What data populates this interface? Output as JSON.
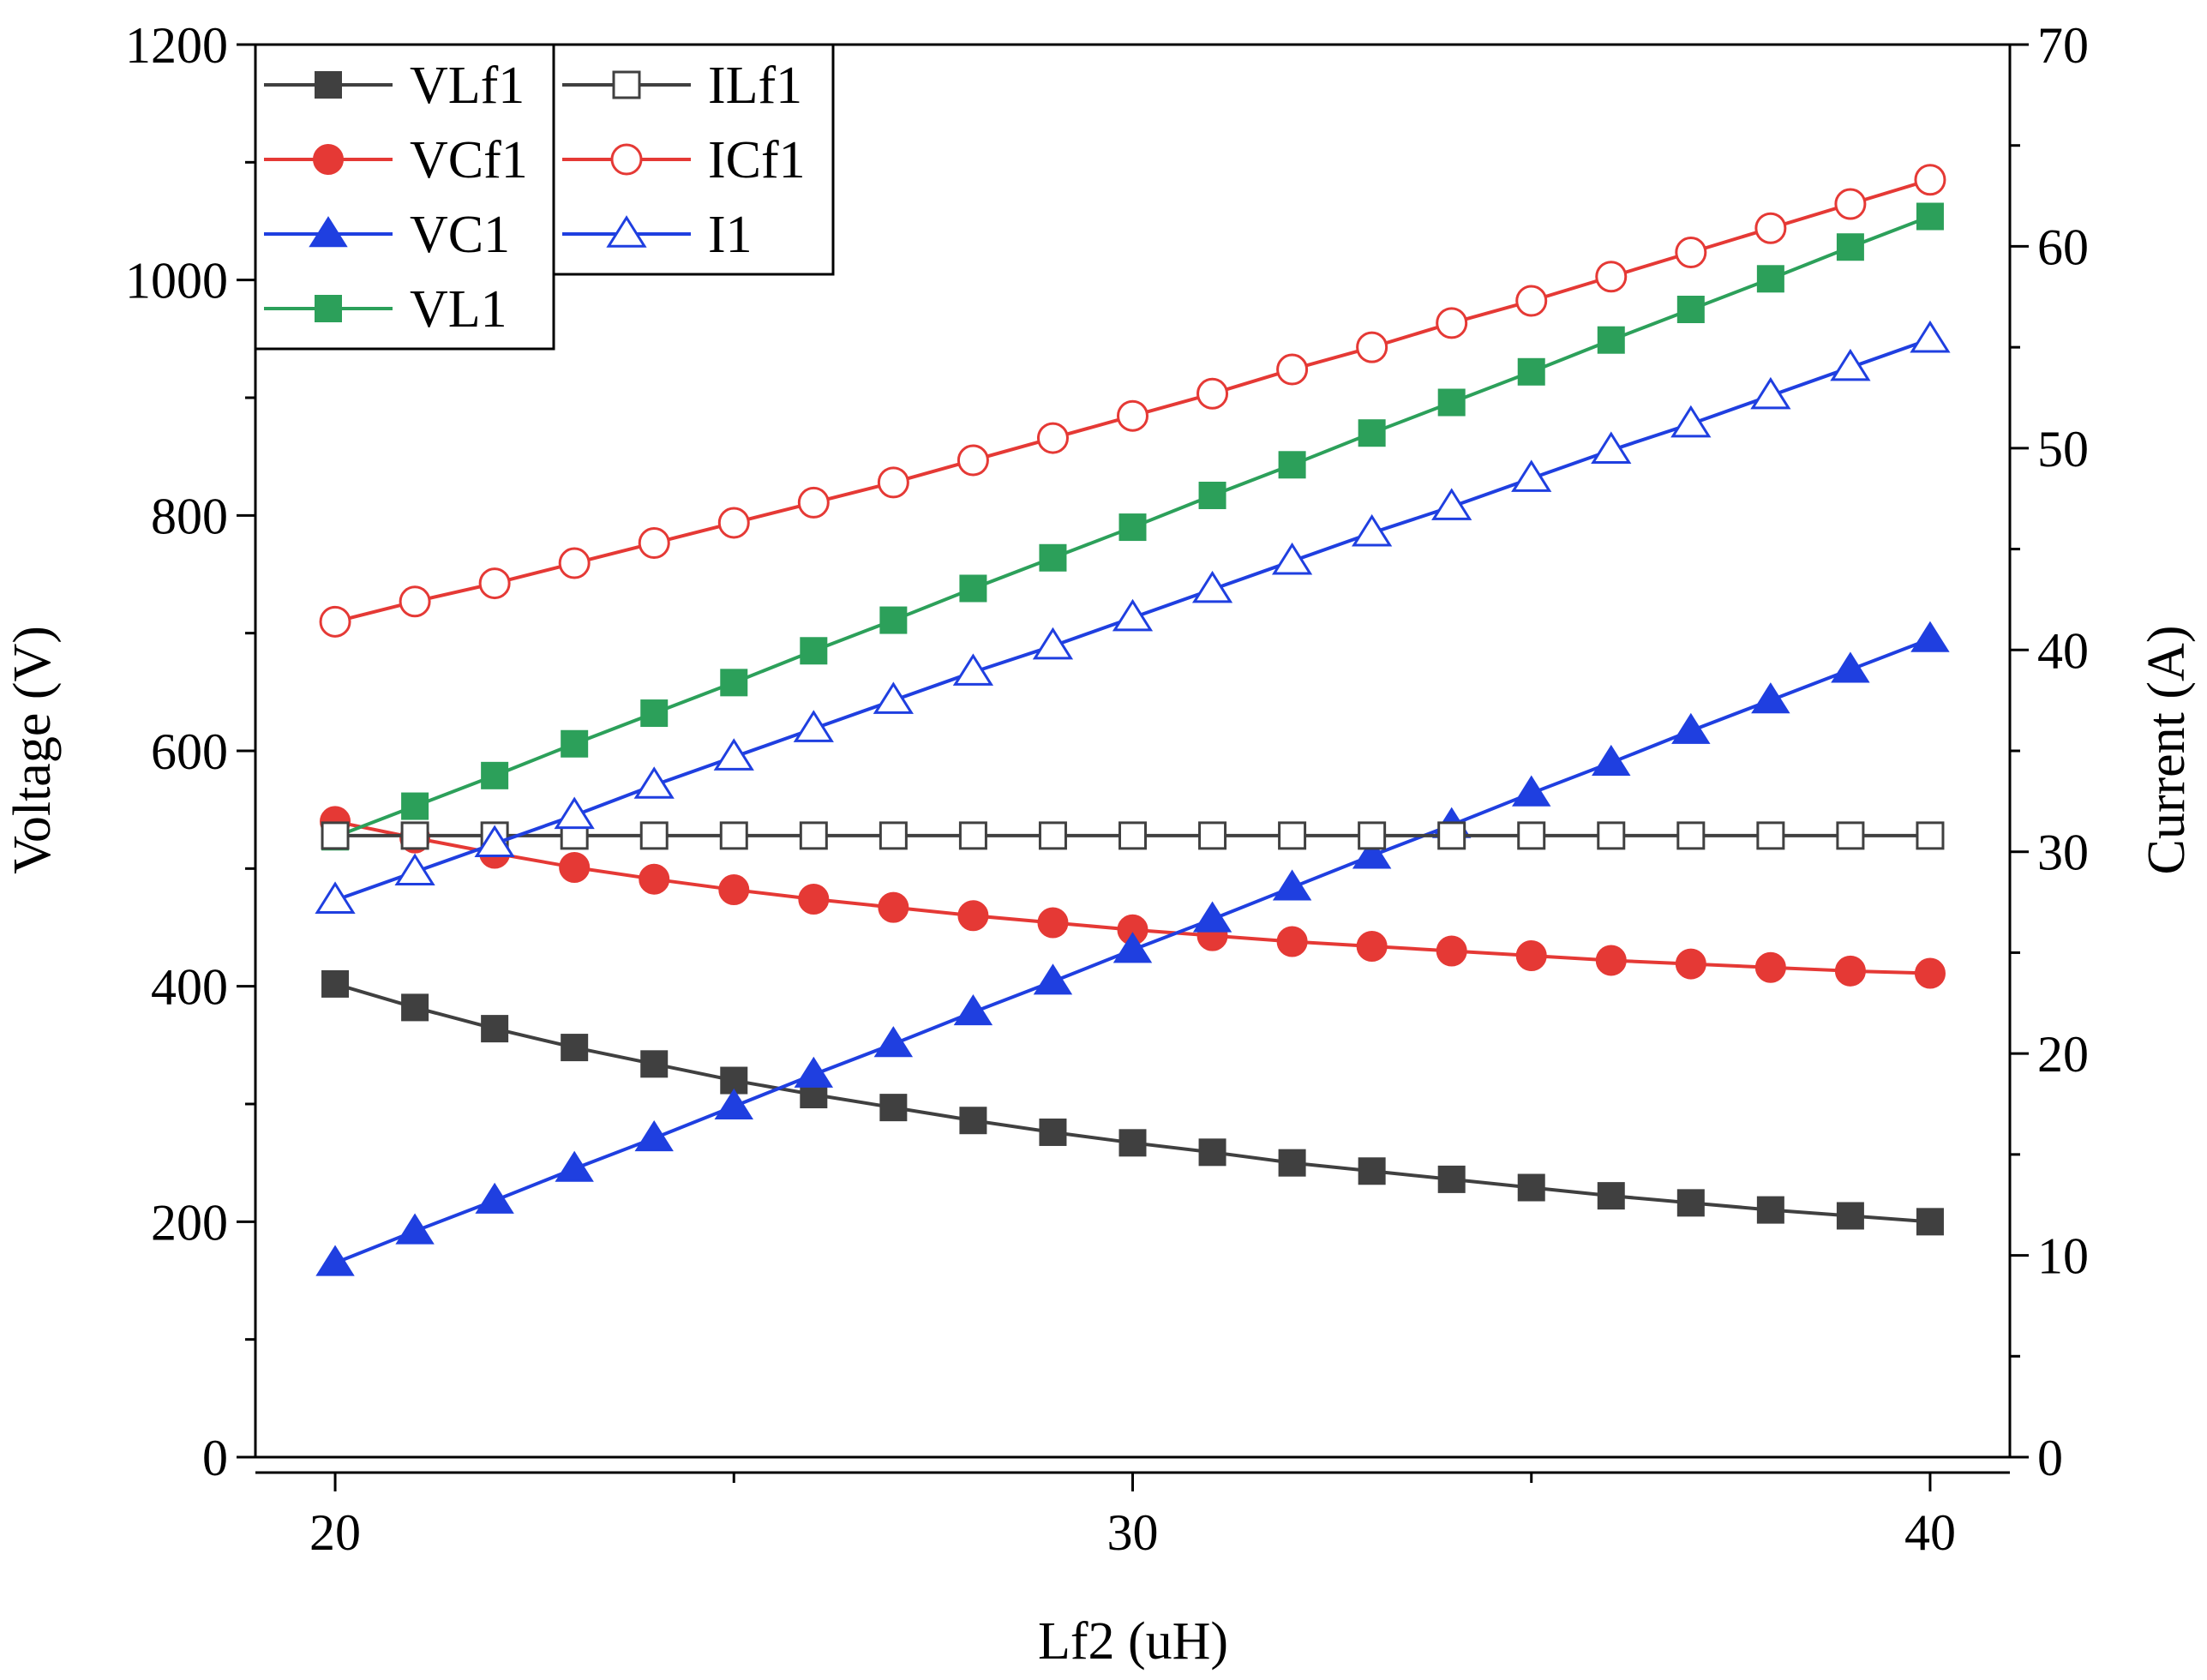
{
  "chart_data": {
    "type": "line",
    "xlabel": "Lf2 (uH)",
    "ylabel": "Voltage (V)",
    "y2label": "Current (A)",
    "xlim": [
      19,
      41
    ],
    "ylim": [
      0,
      1200
    ],
    "y2lim": [
      0,
      70
    ],
    "xticks": [
      20,
      30,
      40
    ],
    "yticks": [
      0,
      200,
      400,
      600,
      800,
      1000,
      1200
    ],
    "y2ticks": [
      0,
      10,
      20,
      30,
      40,
      50,
      60,
      70
    ],
    "x": [
      20,
      21,
      22,
      23,
      24,
      25,
      26,
      27,
      28,
      29,
      30,
      31,
      32,
      33,
      34,
      35,
      36,
      37,
      38,
      39,
      40
    ],
    "legend_position": "top-left",
    "series": [
      {
        "name": "VLf1",
        "axis": "left",
        "color": "#404040",
        "marker": "square",
        "filled": true,
        "values": [
          402,
          382,
          364,
          348,
          334,
          320,
          308,
          297,
          286,
          276,
          267,
          259,
          250,
          243,
          236,
          229,
          222,
          216,
          210,
          205,
          200
        ]
      },
      {
        "name": "VCf1",
        "axis": "left",
        "color": "#e53935",
        "marker": "circle",
        "filled": true,
        "values": [
          540,
          526,
          513,
          501,
          491,
          482,
          474,
          467,
          460,
          454,
          448,
          443,
          438,
          434,
          430,
          426,
          422,
          419,
          416,
          413,
          411
        ]
      },
      {
        "name": "VC1",
        "axis": "left",
        "color": "#1f3fe0",
        "marker": "triangle",
        "filled": true,
        "values": [
          165,
          192,
          218,
          245,
          271,
          298,
          325,
          351,
          378,
          404,
          431,
          457,
          484,
          511,
          537,
          564,
          590,
          617,
          643,
          669,
          695
        ]
      },
      {
        "name": "VL1",
        "axis": "left",
        "color": "#2ca05a",
        "marker": "square",
        "filled": true,
        "values": [
          527,
          553,
          579,
          606,
          632,
          658,
          685,
          711,
          738,
          764,
          790,
          817,
          843,
          870,
          896,
          922,
          949,
          975,
          1001,
          1028,
          1054
        ]
      },
      {
        "name": "ILf1",
        "axis": "right",
        "color": "#404040",
        "marker": "square",
        "filled": false,
        "values": [
          30.8,
          30.8,
          30.8,
          30.8,
          30.8,
          30.8,
          30.8,
          30.8,
          30.8,
          30.8,
          30.8,
          30.8,
          30.8,
          30.8,
          30.8,
          30.8,
          30.8,
          30.8,
          30.8,
          30.8,
          30.8
        ]
      },
      {
        "name": "ICf1",
        "axis": "right",
        "color": "#e53935",
        "marker": "circle",
        "filled": false,
        "values": [
          41.4,
          42.4,
          43.3,
          44.3,
          45.3,
          46.3,
          47.3,
          48.3,
          49.4,
          50.5,
          51.6,
          52.7,
          53.9,
          55.0,
          56.2,
          57.3,
          58.5,
          59.7,
          60.9,
          62.1,
          63.3
        ]
      },
      {
        "name": "I1",
        "axis": "right",
        "color": "#1f3fe0",
        "marker": "triangle",
        "filled": false,
        "values": [
          27.6,
          29.0,
          30.4,
          31.8,
          33.3,
          34.7,
          36.1,
          37.5,
          38.9,
          40.2,
          41.6,
          43.0,
          44.4,
          45.8,
          47.1,
          48.5,
          49.9,
          51.2,
          52.6,
          54.0,
          55.4
        ]
      }
    ]
  }
}
